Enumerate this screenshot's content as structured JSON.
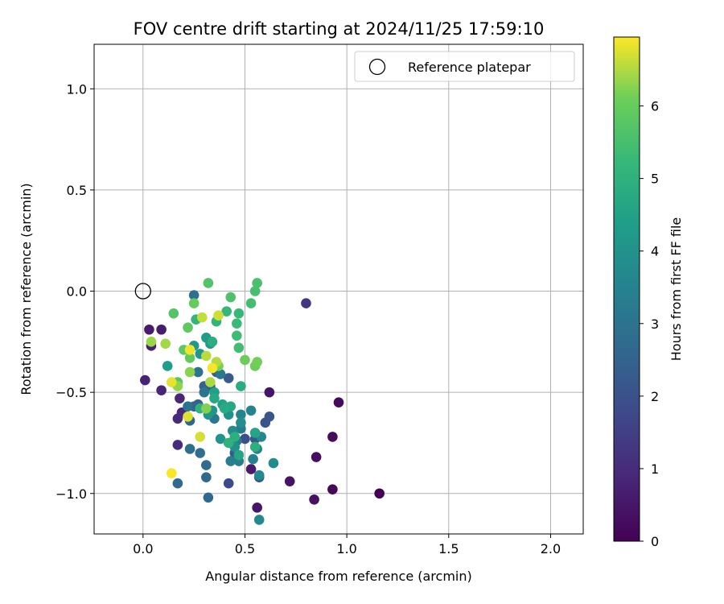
{
  "chart_data": {
    "type": "scatter",
    "title": "FOV centre drift starting at 2024/11/25 17:59:10",
    "xlabel": "Angular distance from reference (arcmin)",
    "ylabel": "Rotation from reference (arcmin)",
    "xlim": [
      -0.24,
      2.16
    ],
    "ylim": [
      -1.2,
      1.22
    ],
    "xticks": [
      0.0,
      0.5,
      1.0,
      1.5,
      2.0
    ],
    "xtick_labels": [
      "0.0",
      "0.5",
      "1.0",
      "1.5",
      "2.0"
    ],
    "yticks": [
      -1.0,
      -0.5,
      0.0,
      0.5,
      1.0
    ],
    "ytick_labels": [
      "−1.0",
      "−0.5",
      "0.0",
      "0.5",
      "1.0"
    ],
    "grid": true,
    "colormap": "viridis",
    "colorbar": {
      "label": "Hours from first FF file",
      "range": [
        0,
        6.95
      ],
      "ticks": [
        0,
        1,
        2,
        3,
        4,
        5,
        6
      ],
      "tick_labels": [
        "0",
        "1",
        "2",
        "3",
        "4",
        "5",
        "6"
      ]
    },
    "legend": {
      "location": "top-right",
      "entries": [
        {
          "label": "Reference platepar",
          "marker": "open-circle",
          "color": "#000000"
        }
      ]
    },
    "reference_point": {
      "x": 0.0,
      "y": 0.0
    },
    "points": [
      [
        1.16,
        -1.0,
        0.0
      ],
      [
        0.93,
        -0.98,
        0.15
      ],
      [
        0.96,
        -0.55,
        0.2
      ],
      [
        0.93,
        -0.72,
        0.25
      ],
      [
        0.85,
        -0.82,
        0.3
      ],
      [
        0.84,
        -1.03,
        0.35
      ],
      [
        0.72,
        -0.94,
        0.4
      ],
      [
        0.62,
        -0.5,
        0.45
      ],
      [
        0.56,
        -1.07,
        0.5
      ],
      [
        0.53,
        -0.88,
        0.55
      ],
      [
        0.03,
        -0.19,
        0.6
      ],
      [
        0.09,
        -0.19,
        0.65
      ],
      [
        0.04,
        -0.27,
        0.7
      ],
      [
        0.01,
        -0.44,
        0.75
      ],
      [
        0.09,
        -0.49,
        0.8
      ],
      [
        0.18,
        -0.53,
        0.85
      ],
      [
        0.19,
        -0.6,
        0.9
      ],
      [
        0.17,
        -0.63,
        0.95
      ],
      [
        0.17,
        -0.76,
        1.0
      ],
      [
        0.8,
        -0.06,
        1.3
      ],
      [
        0.42,
        -0.95,
        1.8
      ],
      [
        0.5,
        -0.73,
        1.9
      ],
      [
        0.57,
        -0.92,
        2.0
      ],
      [
        0.6,
        -0.65,
        2.05
      ],
      [
        0.62,
        -0.62,
        2.1
      ],
      [
        0.55,
        -0.73,
        2.15
      ],
      [
        0.45,
        -0.8,
        2.2
      ],
      [
        0.42,
        -0.43,
        2.25
      ],
      [
        0.36,
        -0.4,
        2.3
      ],
      [
        0.33,
        -0.47,
        2.35
      ],
      [
        0.3,
        -0.47,
        2.4
      ],
      [
        0.27,
        -0.56,
        2.45
      ],
      [
        0.25,
        -0.57,
        2.5
      ],
      [
        0.23,
        -0.64,
        2.55
      ],
      [
        0.31,
        -0.92,
        2.6
      ],
      [
        0.32,
        -1.02,
        2.65
      ],
      [
        0.17,
        -0.95,
        2.7
      ],
      [
        0.31,
        -0.86,
        2.75
      ],
      [
        0.28,
        -0.8,
        2.8
      ],
      [
        0.23,
        -0.78,
        2.85
      ],
      [
        0.25,
        -0.02,
        2.9
      ],
      [
        0.27,
        -0.4,
        2.95
      ],
      [
        0.22,
        -0.57,
        3.0
      ],
      [
        0.3,
        -0.5,
        3.05
      ],
      [
        0.35,
        -0.63,
        3.1
      ],
      [
        0.38,
        -0.41,
        3.15
      ],
      [
        0.48,
        -0.68,
        3.2
      ],
      [
        0.46,
        -0.74,
        3.25
      ],
      [
        0.47,
        -0.84,
        3.3
      ],
      [
        0.43,
        -0.84,
        3.35
      ],
      [
        0.54,
        -0.83,
        3.4
      ],
      [
        0.56,
        -0.78,
        3.45
      ],
      [
        0.53,
        -0.59,
        3.5
      ],
      [
        0.48,
        -0.61,
        3.55
      ],
      [
        0.58,
        -0.72,
        3.6
      ],
      [
        0.57,
        -1.13,
        3.65
      ],
      [
        0.57,
        -0.91,
        3.7
      ],
      [
        0.64,
        -0.85,
        3.75
      ],
      [
        0.44,
        -0.69,
        3.8
      ],
      [
        0.48,
        -0.65,
        3.85
      ],
      [
        0.45,
        -0.77,
        3.9
      ],
      [
        0.42,
        -0.61,
        3.95
      ],
      [
        0.38,
        -0.73,
        4.0
      ],
      [
        0.34,
        -0.59,
        4.05
      ],
      [
        0.32,
        -0.61,
        4.1
      ],
      [
        0.28,
        -0.31,
        4.15
      ],
      [
        0.25,
        -0.27,
        4.2
      ],
      [
        0.33,
        -0.26,
        4.25
      ],
      [
        0.31,
        -0.23,
        4.3
      ],
      [
        0.12,
        -0.37,
        4.35
      ],
      [
        0.35,
        -0.5,
        4.4
      ],
      [
        0.39,
        -0.56,
        4.45
      ],
      [
        0.45,
        -0.72,
        4.5
      ],
      [
        0.55,
        -0.7,
        4.55
      ],
      [
        0.47,
        -0.81,
        4.6
      ],
      [
        0.43,
        -0.57,
        4.65
      ],
      [
        0.35,
        -0.53,
        4.7
      ],
      [
        0.4,
        -0.58,
        4.75
      ],
      [
        0.48,
        -0.47,
        4.8
      ],
      [
        0.34,
        -0.25,
        4.85
      ],
      [
        0.45,
        -0.72,
        4.9
      ],
      [
        0.55,
        -0.77,
        4.95
      ],
      [
        0.42,
        -0.75,
        5.0
      ],
      [
        0.28,
        -0.58,
        5.05
      ],
      [
        0.26,
        -0.14,
        5.1
      ],
      [
        0.36,
        -0.15,
        5.15
      ],
      [
        0.41,
        -0.1,
        5.2
      ],
      [
        0.47,
        -0.11,
        5.25
      ],
      [
        0.46,
        -0.16,
        5.3
      ],
      [
        0.46,
        -0.22,
        5.35
      ],
      [
        0.47,
        -0.28,
        5.4
      ],
      [
        0.53,
        -0.06,
        5.45
      ],
      [
        0.55,
        0.0,
        5.5
      ],
      [
        0.56,
        0.04,
        5.55
      ],
      [
        0.43,
        -0.03,
        5.6
      ],
      [
        0.32,
        0.04,
        5.65
      ],
      [
        0.15,
        -0.11,
        5.7
      ],
      [
        0.17,
        -0.45,
        5.75
      ],
      [
        0.2,
        -0.29,
        5.8
      ],
      [
        0.22,
        -0.18,
        5.85
      ],
      [
        0.23,
        -0.33,
        5.9
      ],
      [
        0.25,
        -0.06,
        5.95
      ],
      [
        0.5,
        -0.34,
        6.0
      ],
      [
        0.55,
        -0.37,
        6.05
      ],
      [
        0.56,
        -0.35,
        6.1
      ],
      [
        0.37,
        -0.37,
        6.15
      ],
      [
        0.31,
        -0.58,
        6.2
      ],
      [
        0.23,
        -0.4,
        6.25
      ],
      [
        0.17,
        -0.47,
        6.3
      ],
      [
        0.04,
        -0.25,
        6.35
      ],
      [
        0.11,
        -0.26,
        6.4
      ],
      [
        0.33,
        -0.45,
        6.45
      ],
      [
        0.36,
        -0.35,
        6.5
      ],
      [
        0.31,
        -0.32,
        6.55
      ],
      [
        0.29,
        -0.13,
        6.6
      ],
      [
        0.37,
        -0.12,
        6.65
      ],
      [
        0.28,
        -0.72,
        6.7
      ],
      [
        0.22,
        -0.62,
        6.75
      ],
      [
        0.14,
        -0.45,
        6.8
      ],
      [
        0.23,
        -0.29,
        6.85
      ],
      [
        0.34,
        -0.38,
        6.9
      ],
      [
        0.14,
        -0.9,
        6.93
      ]
    ]
  }
}
